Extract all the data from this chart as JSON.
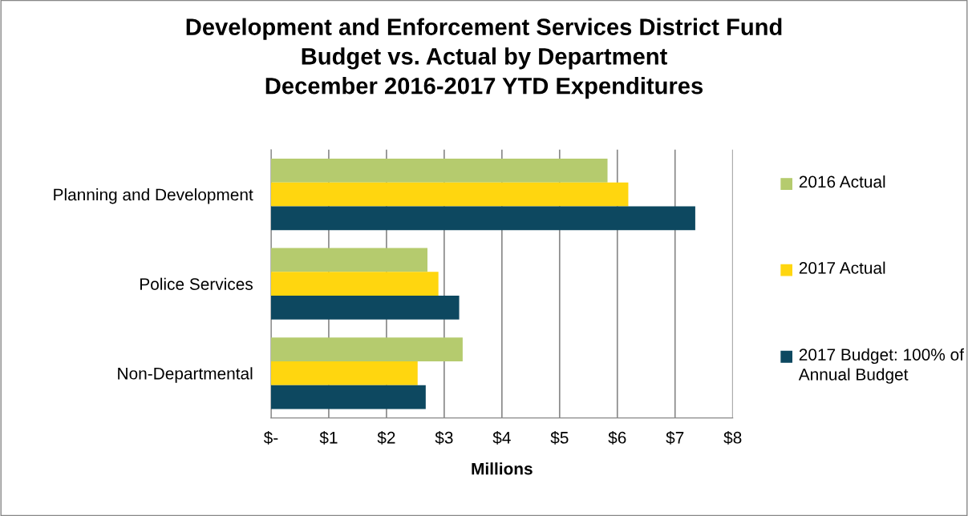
{
  "chart_data": {
    "type": "bar",
    "orientation": "horizontal",
    "title": "Development and Enforcement Services District Fund\nBudget vs. Actual by Department\nDecember 2016-2017 YTD Expenditures",
    "xlabel": "Millions",
    "categories": [
      "Planning and Development",
      "Police Services",
      "Non-Departmental"
    ],
    "series": [
      {
        "name": "2016 Actual",
        "color": "#b5cb6e",
        "values": [
          5.83,
          2.71,
          3.32
        ]
      },
      {
        "name": "2017 Actual",
        "color": "#ffd60f",
        "values": [
          6.19,
          2.9,
          2.54
        ]
      },
      {
        "name": "2017 Budget: 100% of Annual Budget",
        "color": "#0d4860",
        "values": [
          7.35,
          3.26,
          2.68
        ]
      }
    ],
    "xlim": [
      0,
      8
    ],
    "xticks": [
      {
        "value": 0,
        "label": "$-"
      },
      {
        "value": 1,
        "label": "$1"
      },
      {
        "value": 2,
        "label": "$2"
      },
      {
        "value": 3,
        "label": "$3"
      },
      {
        "value": 4,
        "label": "$4"
      },
      {
        "value": 5,
        "label": "$5"
      },
      {
        "value": 6,
        "label": "$6"
      },
      {
        "value": 7,
        "label": "$7"
      },
      {
        "value": 8,
        "label": "$8"
      }
    ],
    "grid": "x",
    "legend": "right"
  }
}
